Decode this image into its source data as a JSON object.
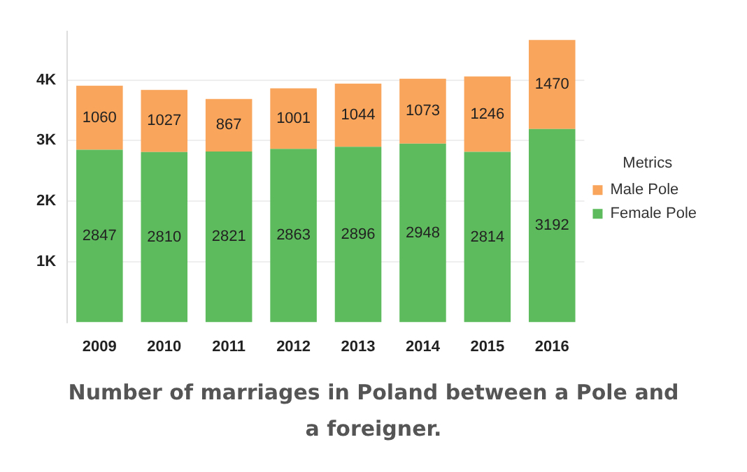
{
  "chart_data": {
    "type": "bar",
    "title": "Number of marriages in Poland between a Pole and a foreigner.",
    "legend_title": "Metrics",
    "categories": [
      "2009",
      "2010",
      "2011",
      "2012",
      "2013",
      "2014",
      "2015",
      "2016"
    ],
    "stacked": true,
    "ylim": [
      0,
      4800
    ],
    "series": [
      {
        "name": "Female Pole",
        "color": "#5dbb5d",
        "values": [
          2847,
          2810,
          2821,
          2863,
          2896,
          2948,
          2814,
          3192
        ]
      },
      {
        "name": "Male Pole",
        "color": "#f9a55b",
        "values": [
          1060,
          1027,
          867,
          1001,
          1044,
          1073,
          1246,
          1470
        ]
      }
    ],
    "yticks": [
      {
        "value": 1000,
        "label": "1K"
      },
      {
        "value": 2000,
        "label": "2K"
      },
      {
        "value": 3000,
        "label": "3K"
      },
      {
        "value": 4000,
        "label": "4K"
      }
    ],
    "grid": "y",
    "legend": "right",
    "data_labels": true
  }
}
